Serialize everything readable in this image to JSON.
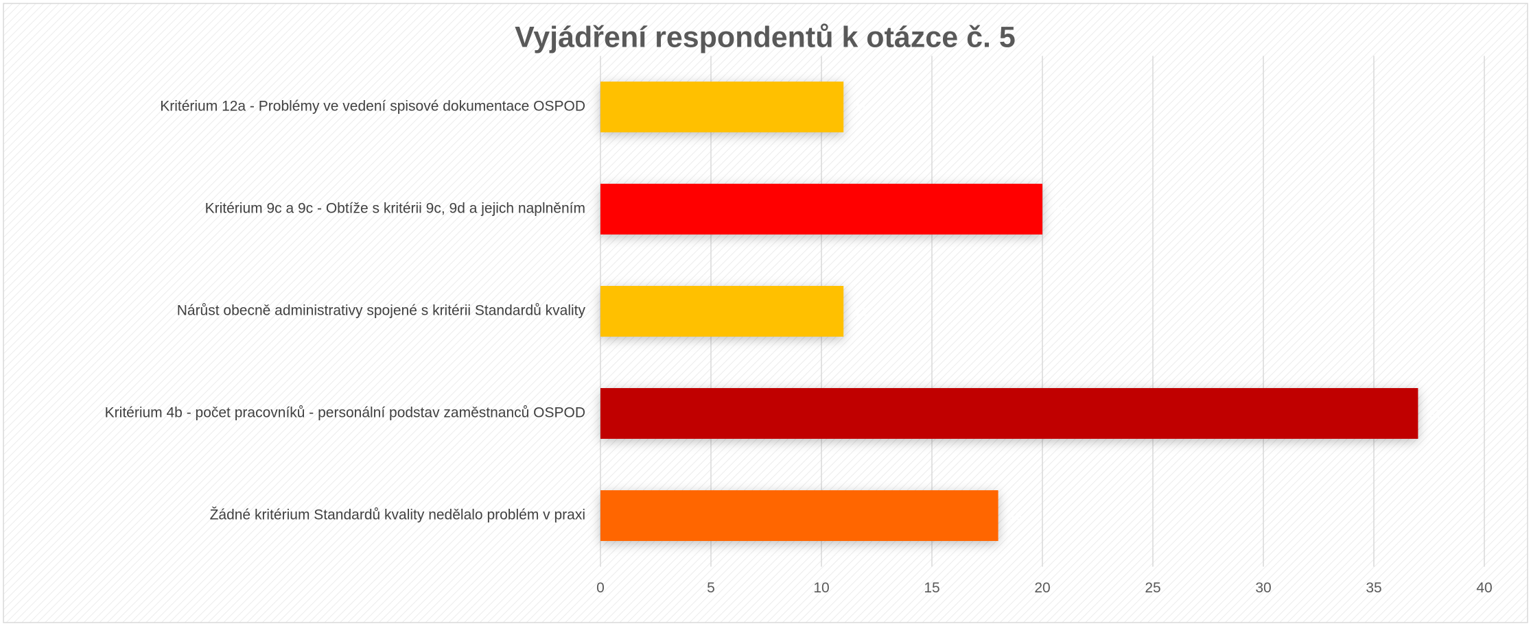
{
  "chart_data": {
    "type": "bar",
    "orientation": "horizontal",
    "title": "Vyjádření respondentů k otázce č. 5",
    "categories": [
      "Kritérium 12a - Problémy ve vedení spisové dokumentace OSPOD",
      "Kritérium 9c a 9c - Obtíže s kritérii 9c, 9d a jejich naplněním",
      "Nárůst obecně administrativy spojené s kritérii Standardů kvality",
      "Kritérium 4b - počet pracovníků - personální podstav zaměstnanců OSPOD",
      "Žádné kritérium Standardů kvality nedělalo problém v praxi"
    ],
    "values": [
      11,
      20,
      11,
      37,
      18
    ],
    "colors": [
      "#ffc000",
      "#ff0000",
      "#ffc000",
      "#c00000",
      "#ff6600"
    ],
    "xlim": [
      0,
      40
    ],
    "xticks": [
      0,
      5,
      10,
      15,
      20,
      25,
      30,
      35,
      40
    ],
    "grid": true
  }
}
